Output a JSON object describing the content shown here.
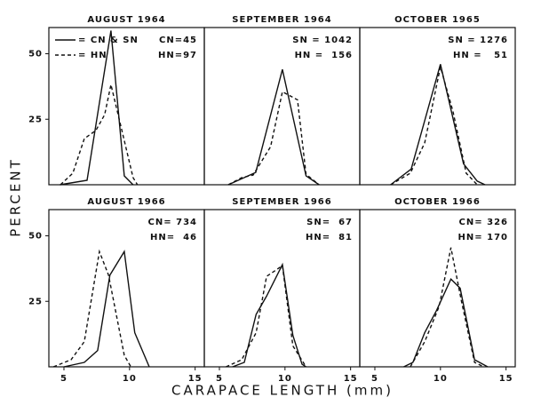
{
  "chart_data": [
    {
      "type": "line",
      "title": "AUGUST 1964",
      "annotations": [
        "CN=45",
        "HN=97"
      ],
      "xlim": [
        3.85,
        15.7
      ],
      "ylim": [
        0,
        60
      ],
      "yticks": [
        25,
        50
      ],
      "series": [
        {
          "style": "solid",
          "color": "#111111",
          "x": [
            4.7,
            6.76,
            8.58,
            9.6,
            10.27
          ],
          "values": [
            0,
            1.7,
            58.8,
            3.4,
            0
          ]
        },
        {
          "style": "dashed",
          "color": "#111111",
          "x": [
            4.73,
            5.68,
            6.55,
            7.43,
            8.1,
            8.58,
            9.39,
            10.27,
            10.6
          ],
          "values": [
            0,
            4.4,
            17.6,
            20.7,
            26.7,
            38.2,
            21.3,
            2.7,
            0
          ]
        }
      ]
    },
    {
      "type": "line",
      "title": "SEPTEMBER 1964",
      "annotations": [
        "SN = 1042",
        "HN =  156"
      ],
      "xlim": [
        3.85,
        15.7
      ],
      "ylim": [
        0,
        60
      ],
      "series": [
        {
          "style": "solid",
          "color": "#111111",
          "x": [
            5.68,
            7.77,
            9.8,
            11.6,
            12.6
          ],
          "values": [
            0,
            4.7,
            44,
            3.4,
            0
          ]
        },
        {
          "style": "dashed",
          "color": "#111111",
          "x": [
            5.68,
            6.7,
            7.57,
            8.9,
            9.8,
            10.95,
            11.6,
            12.6
          ],
          "values": [
            0,
            2.7,
            3.7,
            14.5,
            35.5,
            32.4,
            4,
            0
          ]
        }
      ]
    },
    {
      "type": "line",
      "title": "OCTOBER 1965",
      "annotations": [
        "SN = 1276",
        "HN =   51"
      ],
      "xlim": [
        3.85,
        15.7
      ],
      "ylim": [
        0,
        60
      ],
      "series": [
        {
          "style": "solid",
          "color": "#111111",
          "x": [
            6.2,
            7.77,
            10,
            11.76,
            12.8,
            13.4
          ],
          "values": [
            0,
            6,
            46,
            8,
            1.4,
            0
          ]
        },
        {
          "style": "dashed",
          "color": "#111111",
          "x": [
            6.2,
            7.7,
            8.8,
            10,
            10.95,
            11.96,
            12.8
          ],
          "values": [
            0,
            4.4,
            16,
            45,
            28,
            4.4,
            0
          ]
        }
      ]
    },
    {
      "type": "line",
      "title": "AUGUST 1966",
      "annotations": [
        "CN= 734",
        "HN=  46"
      ],
      "xlim": [
        3.85,
        15.7
      ],
      "ylim": [
        0,
        60
      ],
      "yticks": [
        25,
        50
      ],
      "xticks": [
        5,
        10,
        15
      ],
      "series": [
        {
          "style": "solid",
          "color": "#111111",
          "x": [
            5,
            6.55,
            7.57,
            8.5,
            9.6,
            10.4,
            11.5
          ],
          "values": [
            0,
            1.7,
            6.2,
            35,
            44,
            13,
            0
          ]
        },
        {
          "style": "dashed",
          "color": "#111111",
          "x": [
            4.2,
            5.54,
            6.55,
            7.7,
            8.4,
            9.6,
            10.1
          ],
          "values": [
            0,
            2.7,
            9.6,
            44,
            35,
            4.4,
            0
          ]
        }
      ]
    },
    {
      "type": "line",
      "title": "SEPTEMBER 1966",
      "annotations": [
        "SN=  67",
        "HN=  81"
      ],
      "xlim": [
        3.85,
        15.7
      ],
      "ylim": [
        0,
        60
      ],
      "xticks": [
        5,
        10,
        15
      ],
      "series": [
        {
          "style": "solid",
          "color": "#111111",
          "x": [
            6,
            6.9,
            7.8,
            8.6,
            9.8,
            10.6,
            11.3,
            11.6
          ],
          "values": [
            0,
            1.7,
            20,
            27,
            39,
            12,
            1,
            0
          ]
        },
        {
          "style": "dashed",
          "color": "#111111",
          "x": [
            5.5,
            6.7,
            7.8,
            8.6,
            9.8,
            10.6,
            11.6
          ],
          "values": [
            0,
            2.7,
            13,
            34.5,
            38.6,
            8,
            0
          ]
        }
      ]
    },
    {
      "type": "line",
      "title": "OCTOBER 1966",
      "annotations": [
        "CN= 326",
        "HN= 170"
      ],
      "xlim": [
        3.85,
        15.7
      ],
      "ylim": [
        0,
        60
      ],
      "xticks": [
        5,
        10,
        15
      ],
      "series": [
        {
          "style": "solid",
          "color": "#111111",
          "x": [
            7.2,
            7.9,
            8.8,
            9.7,
            10.8,
            11.5,
            12.6,
            13.6
          ],
          "values": [
            0,
            1.7,
            13,
            21.5,
            33.5,
            30,
            2.7,
            0
          ]
        },
        {
          "style": "dashed",
          "color": "#111111",
          "x": [
            7.7,
            8.8,
            9.9,
            10.8,
            11.6,
            12.6,
            13.3
          ],
          "values": [
            0,
            9.6,
            23,
            45.5,
            25,
            1.7,
            0
          ]
        }
      ]
    }
  ],
  "legend": [
    {
      "label": "= CN & SN",
      "style": "solid"
    },
    {
      "label": "= HN",
      "style": "dashed"
    }
  ],
  "ylabel": "PERCENT",
  "xlabel": "CARAPACE LENGTH  (mm)"
}
